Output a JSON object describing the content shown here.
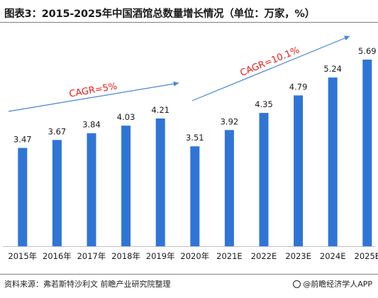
{
  "title": "图表3：2015-2025年中国酒馆总数量增长情况（单位：万家，%）",
  "source": "资料来源：弗若斯特沙利文 前瞻产业研究院整理",
  "brand": "@前瞻经济学人APP",
  "colors": {
    "bar": "#2f75d6",
    "arrow": "#4a86c8",
    "annotation": "#e0201a"
  },
  "chart_data": {
    "type": "bar",
    "categories": [
      "2015年",
      "2016年",
      "2017年",
      "2018年",
      "2019年",
      "2020年",
      "2021E",
      "2022E",
      "2023E",
      "2024E",
      "2025E"
    ],
    "values": [
      3.47,
      3.67,
      3.84,
      4.03,
      4.21,
      3.51,
      3.92,
      4.35,
      4.79,
      5.24,
      5.69
    ],
    "value_labels": [
      "3.47",
      "3.67",
      "3.84",
      "4.03",
      "4.21",
      "3.51",
      "3.92",
      "4.35",
      "4.79",
      "5.24",
      "5.69"
    ],
    "annotations": [
      {
        "text": "CAGR=5%",
        "from_index": 0,
        "to_index": 4
      },
      {
        "text": "CAGR=10.1%",
        "from_index": 5,
        "to_index": 10
      }
    ],
    "xlabel": "",
    "ylabel": "",
    "ylim": [
      0,
      6
    ],
    "grid": false,
    "legend": "none"
  }
}
